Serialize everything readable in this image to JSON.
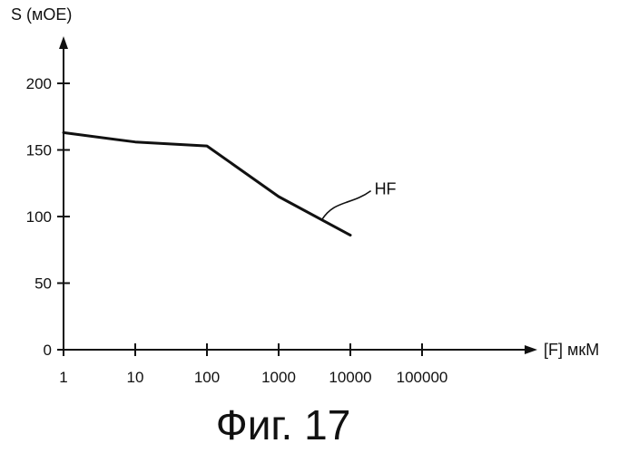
{
  "chart_data": {
    "type": "line",
    "title": "",
    "xlabel": "[F] мкМ",
    "ylabel": "S (мОЕ)",
    "x_scale": "log",
    "xlim": [
      1,
      500000
    ],
    "ylim": [
      0,
      220
    ],
    "x_ticks": [
      1,
      10,
      100,
      1000,
      10000,
      100000
    ],
    "x_tick_labels": [
      "1",
      "10",
      "100",
      "1000",
      "10000",
      "100000"
    ],
    "y_ticks": [
      0,
      50,
      100,
      150,
      200
    ],
    "y_tick_labels": [
      "0",
      "50",
      "100",
      "150",
      "200"
    ],
    "grid": false,
    "legend": "none",
    "series": [
      {
        "name": "HF",
        "x": [
          1,
          10,
          100,
          1000,
          10000
        ],
        "y": [
          163,
          156,
          153,
          115,
          86
        ]
      }
    ],
    "annotations": [
      {
        "text": "HF",
        "series": "HF",
        "anchor_x": 4000
      }
    ],
    "caption": "Фиг. 17",
    "colors": {
      "ink": "#111111",
      "background": "#ffffff"
    }
  }
}
